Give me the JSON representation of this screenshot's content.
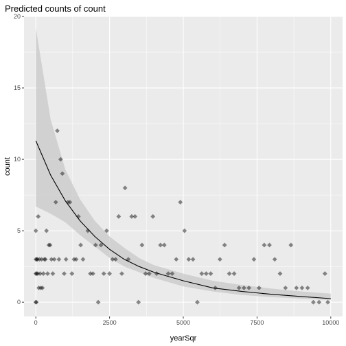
{
  "chart_data": {
    "type": "scatter",
    "title": "Predicted counts of count",
    "xlabel": "yearSqr",
    "ylabel": "count",
    "xlim": [
      -400,
      10400
    ],
    "ylim": [
      -1,
      20
    ],
    "x_ticks": [
      0,
      2500,
      5000,
      7500,
      10000
    ],
    "x_tick_labels": [
      "0",
      "2500",
      "5000",
      "7500",
      "10000"
    ],
    "y_ticks": [
      0,
      5,
      10,
      15,
      20
    ],
    "y_tick_labels": [
      "0",
      "5",
      "10",
      "15",
      "20"
    ],
    "grid": true,
    "colors": {
      "panel_background": "#ebebeb",
      "grid": "#ffffff",
      "points": "#000000",
      "ribbon": "#c8c8c8",
      "fit_line": "#000000"
    },
    "points": [
      [
        0,
        0
      ],
      [
        0,
        2
      ],
      [
        0,
        3
      ],
      [
        0,
        5
      ],
      [
        16,
        0
      ],
      [
        25,
        2
      ],
      [
        36,
        3
      ],
      [
        49,
        3
      ],
      [
        64,
        2
      ],
      [
        81,
        6
      ],
      [
        100,
        1
      ],
      [
        121,
        3
      ],
      [
        144,
        2
      ],
      [
        169,
        1
      ],
      [
        196,
        3
      ],
      [
        225,
        1
      ],
      [
        256,
        2
      ],
      [
        289,
        3
      ],
      [
        324,
        3
      ],
      [
        361,
        5
      ],
      [
        400,
        2
      ],
      [
        441,
        4
      ],
      [
        484,
        4
      ],
      [
        529,
        3
      ],
      [
        576,
        2
      ],
      [
        625,
        3
      ],
      [
        676,
        7
      ],
      [
        729,
        12
      ],
      [
        784,
        3
      ],
      [
        841,
        10
      ],
      [
        900,
        9
      ],
      [
        961,
        2
      ],
      [
        1024,
        3
      ],
      [
        1089,
        7
      ],
      [
        1156,
        7
      ],
      [
        1225,
        2
      ],
      [
        1296,
        3
      ],
      [
        1369,
        3
      ],
      [
        1444,
        6
      ],
      [
        1521,
        4
      ],
      [
        1600,
        3
      ],
      [
        1764,
        5
      ],
      [
        1849,
        2
      ],
      [
        1936,
        2
      ],
      [
        2025,
        4
      ],
      [
        2116,
        0
      ],
      [
        2209,
        4
      ],
      [
        2304,
        2
      ],
      [
        2401,
        5
      ],
      [
        2500,
        2
      ],
      [
        2601,
        3
      ],
      [
        2704,
        3
      ],
      [
        2809,
        6
      ],
      [
        2916,
        2
      ],
      [
        3025,
        8
      ],
      [
        3136,
        3
      ],
      [
        3249,
        6
      ],
      [
        3364,
        6
      ],
      [
        3481,
        0
      ],
      [
        3600,
        4
      ],
      [
        3721,
        2
      ],
      [
        3844,
        2
      ],
      [
        3969,
        6
      ],
      [
        4096,
        2
      ],
      [
        4225,
        4
      ],
      [
        4356,
        4
      ],
      [
        4489,
        2
      ],
      [
        4624,
        2
      ],
      [
        4761,
        3
      ],
      [
        4900,
        7
      ],
      [
        5041,
        5
      ],
      [
        5184,
        3
      ],
      [
        5329,
        3
      ],
      [
        5476,
        0
      ],
      [
        5625,
        2
      ],
      [
        5776,
        2
      ],
      [
        5929,
        2
      ],
      [
        6084,
        1
      ],
      [
        6241,
        3
      ],
      [
        6400,
        4
      ],
      [
        6561,
        2
      ],
      [
        6724,
        2
      ],
      [
        6889,
        1
      ],
      [
        7056,
        1
      ],
      [
        7225,
        1
      ],
      [
        7396,
        3
      ],
      [
        7569,
        1
      ],
      [
        7744,
        4
      ],
      [
        7921,
        4
      ],
      [
        8100,
        3
      ],
      [
        8281,
        2
      ],
      [
        8464,
        1
      ],
      [
        8649,
        4
      ],
      [
        8836,
        1
      ],
      [
        9025,
        1
      ],
      [
        9216,
        1
      ],
      [
        9409,
        0
      ],
      [
        9604,
        0
      ],
      [
        9801,
        2
      ],
      [
        9900,
        0
      ]
    ],
    "fit": {
      "x": [
        0,
        500,
        1000,
        1500,
        2000,
        2500,
        3000,
        3500,
        4000,
        5000,
        6000,
        7000,
        8000,
        9000,
        10000
      ],
      "y": [
        11.3,
        8.9,
        7.1,
        5.7,
        4.6,
        3.7,
        3.0,
        2.5,
        2.1,
        1.5,
        1.0,
        0.75,
        0.55,
        0.4,
        0.25
      ],
      "lower": [
        6.7,
        6.2,
        5.6,
        4.7,
        3.9,
        3.1,
        2.5,
        2.1,
        1.7,
        1.1,
        0.75,
        0.5,
        0.35,
        0.25,
        0.15
      ],
      "upper": [
        19.2,
        12.8,
        9.3,
        7.2,
        5.7,
        4.6,
        3.8,
        3.1,
        2.6,
        2.0,
        1.5,
        1.2,
        0.95,
        0.75,
        0.6
      ]
    }
  }
}
